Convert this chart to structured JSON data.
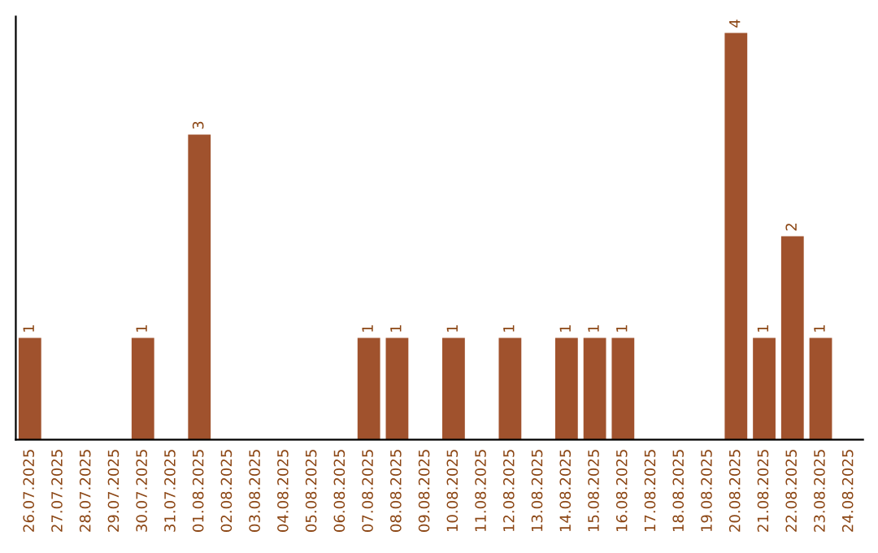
{
  "chart_data": {
    "type": "bar",
    "categories": [
      "26.07.2025",
      "27.07.2025",
      "28.07.2025",
      "29.07.2025",
      "30.07.2025",
      "31.07.2025",
      "01.08.2025",
      "02.08.2025",
      "03.08.2025",
      "04.08.2025",
      "05.08.2025",
      "06.08.2025",
      "07.08.2025",
      "08.08.2025",
      "09.08.2025",
      "10.08.2025",
      "11.08.2025",
      "12.08.2025",
      "13.08.2025",
      "14.08.2025",
      "15.08.2025",
      "16.08.2025",
      "17.08.2025",
      "18.08.2025",
      "19.08.2025",
      "20.08.2025",
      "21.08.2025",
      "22.08.2025",
      "23.08.2025",
      "24.08.2025"
    ],
    "values": [
      1,
      0,
      0,
      0,
      1,
      0,
      3,
      0,
      0,
      0,
      0,
      0,
      1,
      1,
      0,
      1,
      0,
      1,
      0,
      1,
      1,
      1,
      0,
      0,
      0,
      4,
      1,
      2,
      1,
      0
    ],
    "color": "#a0522d",
    "value_labels": [
      "1",
      null,
      null,
      null,
      "1",
      null,
      "3",
      null,
      null,
      null,
      null,
      null,
      "1",
      "1",
      null,
      "1",
      null,
      "1",
      null,
      "1",
      "1",
      "1",
      null,
      null,
      null,
      "4",
      "1",
      "2",
      "1",
      null
    ],
    "tick_labels": "x",
    "grid": false
  }
}
